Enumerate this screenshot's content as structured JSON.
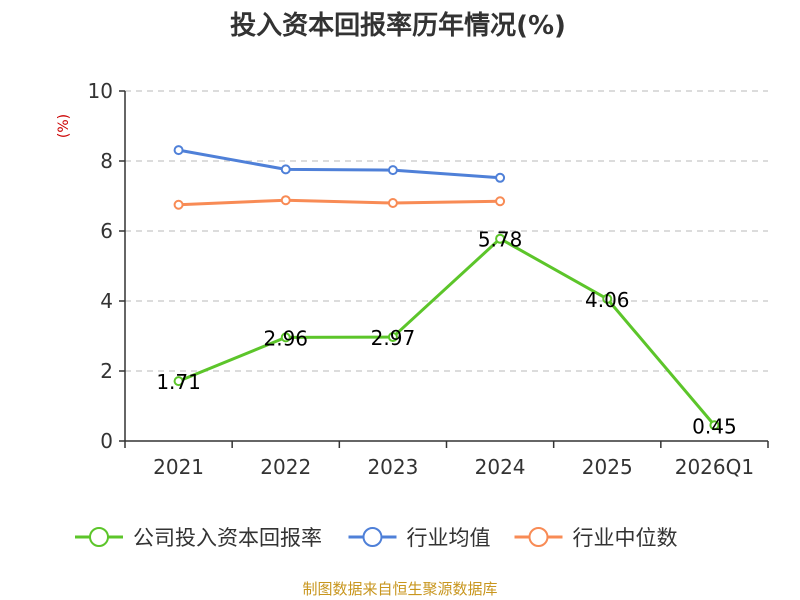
{
  "chart_data": {
    "type": "line",
    "title": "投入资本回报率历年情况(%)",
    "unit_label": "(%)",
    "categories": [
      "2021",
      "2022",
      "2023",
      "2024",
      "2025",
      "2026Q1"
    ],
    "ylim": [
      0,
      10
    ],
    "yticks": [
      "0",
      "2",
      "4",
      "6",
      "8",
      "10"
    ],
    "grid": true,
    "legend_position": "bottom",
    "series": [
      {
        "name": "公司投入资本回报率",
        "color": "#5cc52a",
        "values": [
          1.71,
          2.96,
          2.97,
          5.78,
          4.06,
          0.45
        ],
        "labels": [
          "1.71",
          "2.96",
          "2.97",
          "5.78",
          "4.06",
          "0.45"
        ]
      },
      {
        "name": "行业均值",
        "color": "#4f80d8",
        "values": [
          8.31,
          7.76,
          7.74,
          7.52,
          null,
          null
        ]
      },
      {
        "name": "行业中位数",
        "color": "#f88b55",
        "values": [
          6.75,
          6.88,
          6.8,
          6.85,
          null,
          null
        ]
      }
    ],
    "source": "制图数据来自恒生聚源数据库"
  }
}
